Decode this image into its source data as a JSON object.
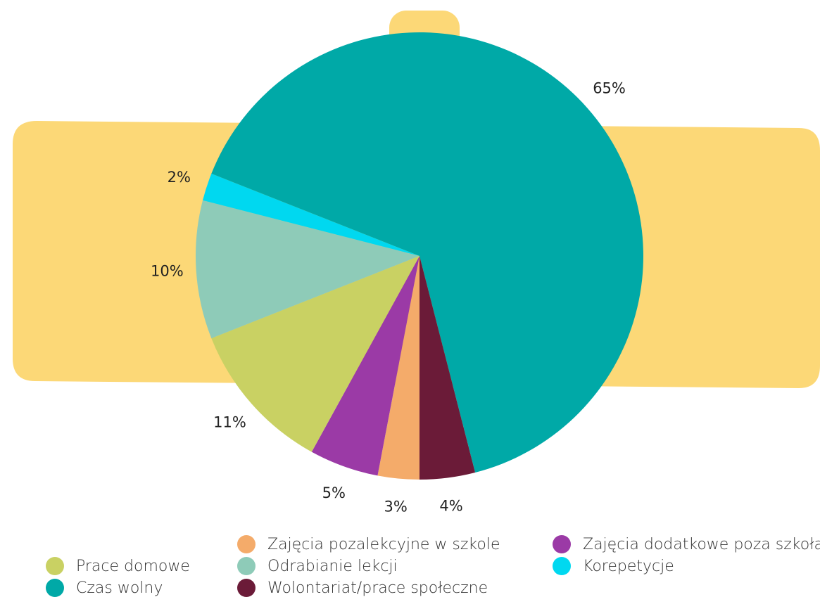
{
  "chart_data": {
    "type": "pie",
    "categories": [
      "Zajęcia pozalekcyjne  w szkole",
      "Zajęcia dodatkowe poza szkołą",
      "Prace domowe",
      "Odrabianie lekcji",
      "Korepetycje",
      "Czas wolny",
      "Wolontariat/prace społeczne"
    ],
    "values": [
      3,
      5,
      11,
      10,
      2,
      65,
      4
    ],
    "value_labels": [
      "3%",
      "5%",
      "11%",
      "10%",
      "2%",
      "65%",
      "4%"
    ],
    "colors": [
      "#f4ab6a",
      "#9b3aa6",
      "#c9d163",
      "#8ecbb8",
      "#00d8f0",
      "#00a9a7",
      "#6b1b38"
    ]
  }
}
